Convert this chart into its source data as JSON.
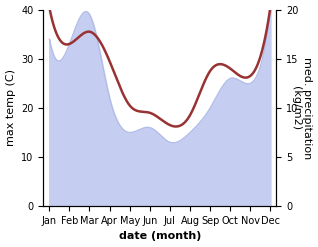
{
  "months": [
    "Jan",
    "Feb",
    "Mar",
    "Apr",
    "May",
    "Jun",
    "Jul",
    "Aug",
    "Sep",
    "Oct",
    "Nov",
    "Dec"
  ],
  "x": [
    0,
    1,
    2,
    3,
    4,
    5,
    6,
    7,
    8,
    9,
    10,
    11
  ],
  "temperature": [
    40.5,
    33.0,
    35.5,
    29.5,
    20.5,
    19.0,
    16.5,
    18.5,
    27.5,
    28.0,
    26.5,
    40.5
  ],
  "precipitation": [
    17.0,
    16.5,
    19.5,
    11.0,
    7.5,
    8.0,
    6.5,
    7.5,
    10.0,
    13.0,
    12.5,
    20.0
  ],
  "temp_color": "#993333",
  "precip_fill_color": "#c5cdf0",
  "precip_line_color": "#b0bce8",
  "temp_ylim": [
    0,
    40
  ],
  "precip_ylim": [
    0,
    20
  ],
  "temp_yticks": [
    0,
    10,
    20,
    30,
    40
  ],
  "precip_yticks": [
    0,
    5,
    10,
    15,
    20
  ],
  "ylabel_left": "max temp (C)",
  "ylabel_right": "med. precipitation\n(kg/m2)",
  "xlabel": "date (month)",
  "label_fontsize": 8,
  "tick_fontsize": 7
}
